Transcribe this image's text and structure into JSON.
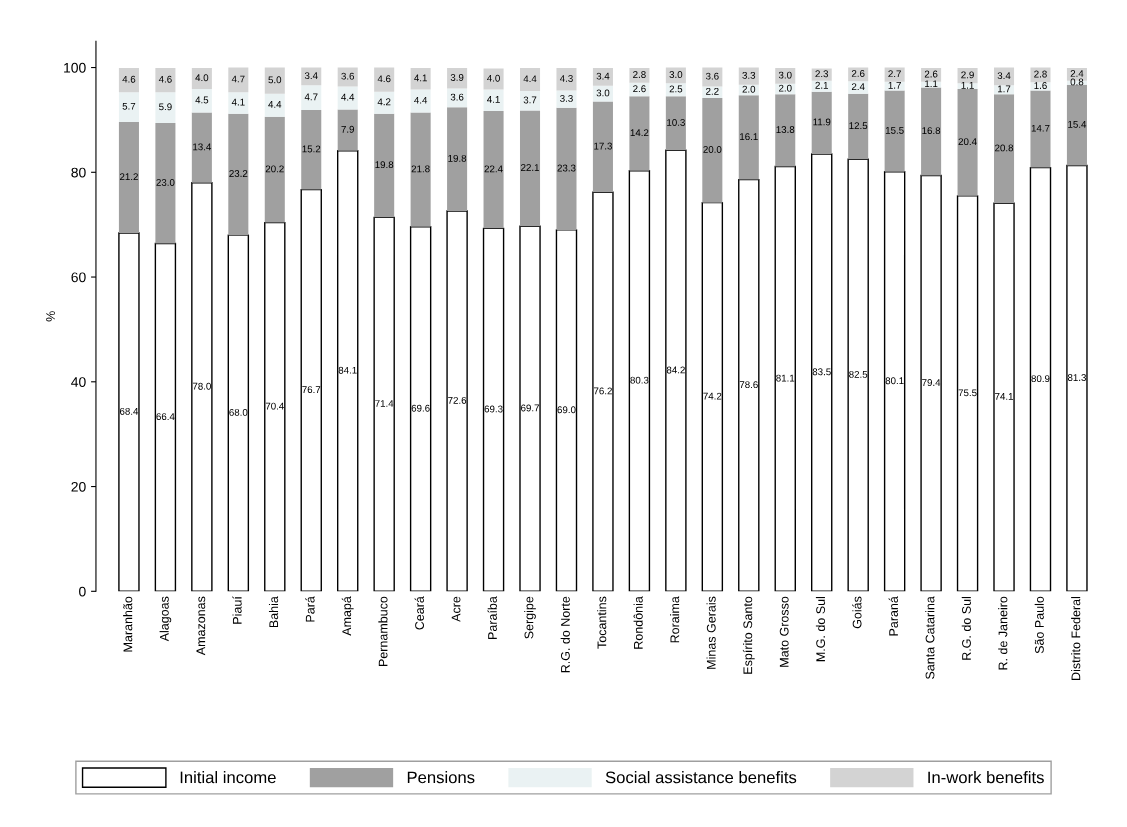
{
  "chart_data": {
    "type": "bar",
    "stacked": true,
    "ylabel": "%",
    "ylim": [
      0,
      105
    ],
    "yticks": [
      0,
      20,
      40,
      60,
      80,
      100
    ],
    "grid": false,
    "legend": "bottom",
    "categories": [
      "Maranhão",
      "Alagoas",
      "Amazonas",
      "Piauí",
      "Bahia",
      "Pará",
      "Amapá",
      "Pernambuco",
      "Ceará",
      "Acre",
      "Paraíba",
      "Sergipe",
      "R.G. do Norte",
      "Tocantins",
      "Rondônia",
      "Roraima",
      "Minas Gerais",
      "Espírito Santo",
      "Mato Grosso",
      "M.G. do Sul",
      "Goiás",
      "Paraná",
      "Santa Catarina",
      "R.G. do Sul",
      "R. de Janeiro",
      "São Paulo",
      "Distrito Federal"
    ],
    "series": [
      {
        "name": "Initial income",
        "color": "#ffffff",
        "values": [
          68.4,
          66.4,
          78.0,
          68.0,
          70.4,
          76.7,
          84.1,
          71.4,
          69.6,
          72.6,
          69.3,
          69.7,
          69.0,
          76.2,
          80.3,
          84.2,
          74.2,
          78.6,
          81.1,
          83.5,
          82.5,
          80.1,
          79.4,
          75.5,
          74.1,
          80.9,
          81.3
        ],
        "value_labels": [
          "68.4",
          "66.4",
          "78.0",
          "68.0",
          "70.4",
          "76.7",
          "84.1",
          "71.4",
          "69.6",
          "72.6",
          "69.3",
          "69.7",
          "69.0",
          "76.2",
          "80.3",
          "84.2",
          "74.2",
          "78.6",
          "81.1",
          "83.5",
          "82.5",
          "80.1",
          "79.4",
          "75.5",
          "74.1",
          "80.9",
          "81.3"
        ]
      },
      {
        "name": "Pensions",
        "color": "#a0a0a0",
        "values": [
          21.2,
          23.0,
          13.4,
          23.2,
          20.2,
          15.2,
          7.9,
          19.8,
          21.8,
          19.8,
          22.4,
          22.1,
          23.3,
          17.3,
          14.2,
          10.3,
          20.0,
          16.1,
          13.8,
          11.9,
          12.5,
          15.5,
          16.8,
          20.4,
          20.8,
          14.7,
          15.4
        ],
        "value_labels": [
          "21.2",
          "23.0",
          "13.4",
          "23.2",
          "20.2",
          "15.2",
          "7.9",
          "19.8",
          "21.8",
          "19.8",
          "22.4",
          "22.1",
          "23.3",
          "17.3",
          "14.2",
          "10.3",
          "20.0",
          "16.1",
          "13.8",
          "11.9",
          "12.5",
          "15.5",
          "16.8",
          "20.4",
          "20.8",
          "14.7",
          "15.4"
        ]
      },
      {
        "name": "Social assistance benefits",
        "color": "#eaf2f3",
        "values": [
          5.7,
          5.9,
          4.5,
          4.1,
          4.4,
          4.7,
          4.4,
          4.2,
          4.4,
          3.6,
          4.1,
          3.7,
          3.3,
          3.0,
          2.6,
          2.5,
          2.2,
          2.0,
          2.0,
          2.1,
          2.4,
          1.7,
          1.1,
          1.1,
          1.7,
          1.6,
          0.8
        ],
        "value_labels": [
          "5.7",
          "5.9",
          "4.5",
          "4.1",
          "4.4",
          "4.7",
          "4.4",
          "4.2",
          "4.4",
          "3.6",
          "4.1",
          "3.7",
          "3.3",
          "3.0",
          "2.6",
          "2.5",
          "2.2",
          "2.0",
          "2.0",
          "2.1",
          "2.4",
          "1.7",
          "1.1",
          "1.1",
          "1.7",
          "1.6",
          "0.8"
        ]
      },
      {
        "name": "In-work benefits",
        "color": "#d3d3d3",
        "values": [
          4.6,
          4.6,
          4.0,
          4.7,
          5.0,
          3.4,
          3.6,
          4.6,
          4.1,
          3.9,
          4.0,
          4.4,
          4.3,
          3.4,
          2.8,
          3.0,
          3.6,
          3.3,
          3.0,
          2.3,
          2.6,
          2.7,
          2.6,
          2.9,
          3.4,
          2.8,
          2.4
        ],
        "value_labels": [
          "4.6",
          "4.6",
          "4.0",
          "4.7",
          "5.0",
          "3.4",
          "3.6",
          "4.6",
          "4.1",
          "3.9",
          "4.0",
          "4.4",
          "4.3",
          "3.4",
          "2.8",
          "3.0",
          "3.6",
          "3.3",
          "3.0",
          "2.3",
          "2.6",
          "2.7",
          "2.6",
          "2.9",
          "3.4",
          "2.8",
          "2.4"
        ]
      }
    ]
  }
}
